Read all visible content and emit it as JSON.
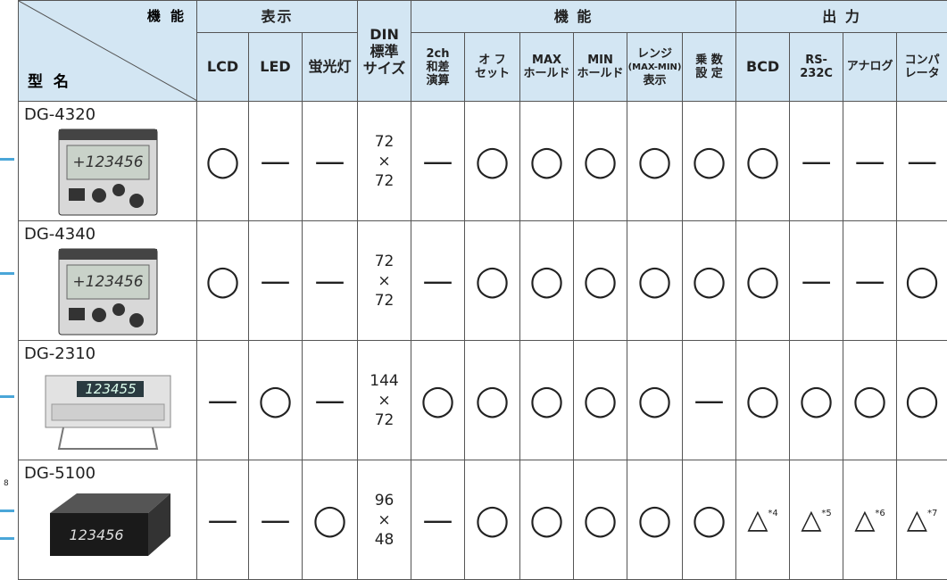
{
  "header": {
    "corner_top": "機 能",
    "corner_bottom": "型 名",
    "groups": [
      "表示",
      "機 能",
      "出 力"
    ],
    "din": [
      "DIN",
      "標準",
      "サイズ"
    ],
    "columns": [
      [
        "LCD"
      ],
      [
        "LED"
      ],
      [
        "蛍光灯"
      ],
      [
        "2ch",
        "和差",
        "演算"
      ],
      [
        "オ フ",
        "セット"
      ],
      [
        "MAX",
        "ホールド"
      ],
      [
        "MIN",
        "ホールド"
      ],
      [
        "レンジ",
        "(MAX-MIN)",
        "表示"
      ],
      [
        "乗 数",
        "設 定"
      ],
      [
        "BCD"
      ],
      [
        "RS-",
        "232C"
      ],
      [
        "アナログ"
      ],
      [
        "コンパ",
        "レータ"
      ]
    ]
  },
  "rows": [
    {
      "model": "DG-4320",
      "display": "+123456",
      "cells": [
        "◯",
        "—",
        "—",
        [
          "72",
          "×",
          "72"
        ],
        "—",
        "◯",
        "◯",
        "◯",
        "◯",
        "◯",
        "◯",
        "—",
        "—",
        "—"
      ]
    },
    {
      "model": "DG-4340",
      "display": "+123456",
      "cells": [
        "◯",
        "—",
        "—",
        [
          "72",
          "×",
          "72"
        ],
        "—",
        "◯",
        "◯",
        "◯",
        "◯",
        "◯",
        "◯",
        "—",
        "—",
        "◯"
      ]
    },
    {
      "model": "DG-2310",
      "display": "123455",
      "cells": [
        "—",
        "◯",
        "—",
        [
          "144",
          "×",
          "72"
        ],
        "◯",
        "◯",
        "◯",
        "◯",
        "◯",
        "—",
        "◯",
        "◯",
        "◯",
        "◯"
      ]
    },
    {
      "model": "DG-5100",
      "display": "123456",
      "cells": [
        "—",
        "—",
        "◯",
        [
          "96",
          "×",
          "48"
        ],
        "—",
        "◯",
        "◯",
        "◯",
        "◯",
        "◯",
        {
          "mark": "△",
          "note": "*4"
        },
        {
          "mark": "△",
          "note": "*5"
        },
        {
          "mark": "△",
          "note": "*6"
        },
        {
          "mark": "△",
          "note": "*7"
        }
      ]
    }
  ],
  "side_note": "8"
}
